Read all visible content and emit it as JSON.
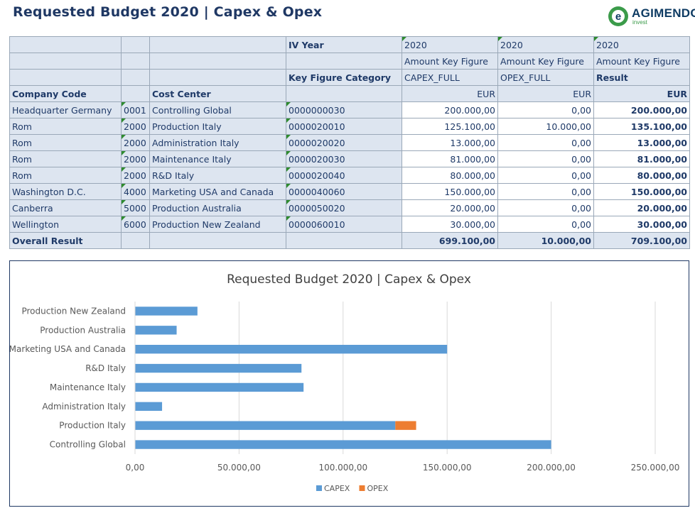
{
  "header": {
    "title": "Requested Budget 2020 | Capex & Opex",
    "logo_name": "AGIMENDO",
    "logo_sub": "invest",
    "logo_letter": "e"
  },
  "table": {
    "row_iv_year": {
      "label": "IV Year",
      "c1": "2020",
      "c2": "2020",
      "c3": "2020"
    },
    "row_key_figure": {
      "c1": "Amount Key Figure",
      "c2": "Amount Key Figure",
      "c3": "Amount Key Figure"
    },
    "row_category": {
      "label": "Key Figure Category",
      "c1": "CAPEX_FULL",
      "c2": "OPEX_FULL",
      "c3": "Result"
    },
    "row_headers": {
      "company_code": "Company Code",
      "cost_center": "Cost Center",
      "c1": "EUR",
      "c2": "EUR",
      "c3": "EUR"
    },
    "rows": [
      {
        "company": "Headquarter Germany",
        "code": "0001",
        "cc_name": "Controlling Global",
        "cc_id": "0000000030",
        "capex": "200.000,00",
        "opex": "0,00",
        "result": "200.000,00"
      },
      {
        "company": "Rom",
        "code": "2000",
        "cc_name": "Production Italy",
        "cc_id": "0000020010",
        "capex": "125.100,00",
        "opex": "10.000,00",
        "result": "135.100,00"
      },
      {
        "company": "Rom",
        "code": "2000",
        "cc_name": "Administration Italy",
        "cc_id": "0000020020",
        "capex": "13.000,00",
        "opex": "0,00",
        "result": "13.000,00"
      },
      {
        "company": "Rom",
        "code": "2000",
        "cc_name": "Maintenance Italy",
        "cc_id": "0000020030",
        "capex": "81.000,00",
        "opex": "0,00",
        "result": "81.000,00"
      },
      {
        "company": "Rom",
        "code": "2000",
        "cc_name": "R&D Italy",
        "cc_id": "0000020040",
        "capex": "80.000,00",
        "opex": "0,00",
        "result": "80.000,00"
      },
      {
        "company": "Washington D.C.",
        "code": "4000",
        "cc_name": "Marketing USA and Canada",
        "cc_id": "0000040060",
        "capex": "150.000,00",
        "opex": "0,00",
        "result": "150.000,00"
      },
      {
        "company": "Canberra",
        "code": "5000",
        "cc_name": "Production Australia",
        "cc_id": "0000050020",
        "capex": "20.000,00",
        "opex": "0,00",
        "result": "20.000,00"
      },
      {
        "company": "Wellington",
        "code": "6000",
        "cc_name": "Production New Zealand",
        "cc_id": "0000060010",
        "capex": "30.000,00",
        "opex": "0,00",
        "result": "30.000,00"
      }
    ],
    "overall": {
      "label": "Overall Result",
      "capex": "699.100,00",
      "opex": "10.000,00",
      "result": "709.100,00"
    }
  },
  "chart_data": {
    "type": "bar",
    "orientation": "horizontal",
    "stacked": true,
    "title": "Requested Budget 2020 | Capex & Opex",
    "categories": [
      "Production New Zealand",
      "Production Australia",
      "Marketing USA and Canada",
      "R&D Italy",
      "Maintenance Italy",
      "Administration Italy",
      "Production Italy",
      "Controlling Global"
    ],
    "series": [
      {
        "name": "CAPEX",
        "color": "#5b9bd5",
        "values": [
          30000,
          20000,
          150000,
          80000,
          81000,
          13000,
          125100,
          200000
        ]
      },
      {
        "name": "OPEX",
        "color": "#ed7d31",
        "values": [
          0,
          0,
          0,
          0,
          0,
          0,
          10000,
          0
        ]
      }
    ],
    "xlim": [
      0,
      250000
    ],
    "xticks": [
      0,
      50000,
      100000,
      150000,
      200000,
      250000
    ],
    "xtick_labels": [
      "0,00",
      "50.000,00",
      "100.000,00",
      "150.000,00",
      "200.000,00",
      "250.000,00"
    ],
    "grid": true,
    "legend": "bottom"
  },
  "colors": {
    "header_bg": "#dde5f0",
    "text": "#1f3a68",
    "title": "#1f3864",
    "mark": "#2e8b2e"
  }
}
